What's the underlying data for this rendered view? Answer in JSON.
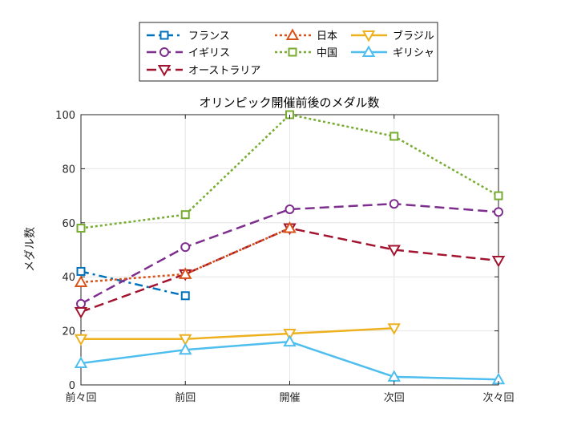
{
  "chart_data": {
    "type": "line",
    "title": "オリンピック開催前後のメダル数",
    "xlabel": "",
    "ylabel": "メダル数",
    "categories": [
      "前々回",
      "前回",
      "開催",
      "次回",
      "次々回"
    ],
    "ylim": [
      0,
      100
    ],
    "yticks": [
      0,
      20,
      40,
      60,
      80,
      100
    ],
    "grid": true,
    "legend_position": "top (outside plot)",
    "series": [
      {
        "name": "フランス",
        "values": [
          42,
          33,
          null,
          null,
          null
        ],
        "color": "#0072BD",
        "linestyle": "dashdot",
        "marker": "square"
      },
      {
        "name": "イギリス",
        "values": [
          30,
          51,
          65,
          67,
          64
        ],
        "color": "#7E2F8E",
        "linestyle": "dashed",
        "marker": "circle"
      },
      {
        "name": "オーストラリア",
        "values": [
          27,
          41,
          58,
          50,
          46
        ],
        "color": "#A2142F",
        "linestyle": "dashed",
        "marker": "triangle-down"
      },
      {
        "name": "日本",
        "values": [
          38,
          41,
          58,
          null,
          null
        ],
        "color": "#D95319",
        "linestyle": "dotted",
        "marker": "triangle-up"
      },
      {
        "name": "中国",
        "values": [
          58,
          63,
          100,
          92,
          70
        ],
        "color": "#77AC30",
        "linestyle": "dotted",
        "marker": "square"
      },
      {
        "name": "ブラジル",
        "values": [
          17,
          17,
          19,
          21,
          null
        ],
        "color": "#EDB120",
        "linestyle": "solid",
        "marker": "triangle-down"
      },
      {
        "name": "ギリシャ",
        "values": [
          8,
          13,
          16,
          3,
          2
        ],
        "color": "#4DBEEE",
        "linestyle": "solid",
        "marker": "triangle-up"
      }
    ]
  }
}
